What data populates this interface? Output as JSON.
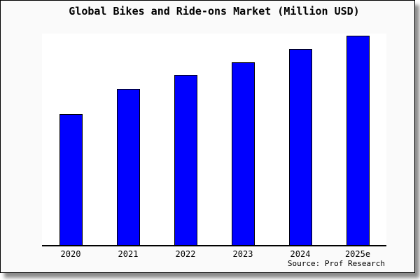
{
  "chart_data": {
    "type": "bar",
    "title": "Global Bikes and Ride-ons Market (Million USD)",
    "categories": [
      "2020",
      "2021",
      "2022",
      "2023",
      "2024",
      "2025e"
    ],
    "values": [
      62.7,
      74.7,
      81.3,
      87.3,
      93.7,
      100
    ],
    "xlabel": "",
    "ylabel": "",
    "ylim": [
      0,
      101
    ],
    "value_note": "no y-axis shown; values are relative units estimated from bar heights with 2025e = 100",
    "bar_color": "#0000ff",
    "bar_edge_color": "#000000",
    "grid": false,
    "legend": "none",
    "source": "Source: Prof Research"
  },
  "figure": {
    "background_color": "#fafafa",
    "plot_background_color": "#ffffff",
    "border_color": "#000000"
  }
}
